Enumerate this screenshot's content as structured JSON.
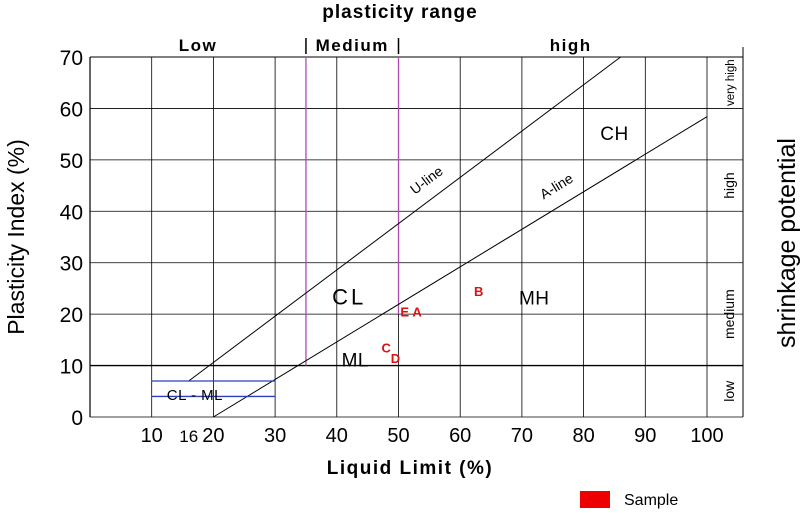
{
  "chart_data": {
    "type": "scatter",
    "title": "plasticity range",
    "xlabel": "Liquid Limit (%)",
    "ylabel": "Plasticity Index (%)",
    "right_label": "shrinkage potential",
    "xlim": [
      0,
      100
    ],
    "ylim": [
      0,
      70
    ],
    "x_ticks": [
      10,
      16,
      20,
      30,
      40,
      50,
      60,
      70,
      80,
      90,
      100
    ],
    "y_ticks": [
      0,
      10,
      20,
      30,
      40,
      50,
      60,
      70
    ],
    "grid": true,
    "plasticity_bands": [
      {
        "label": "Low",
        "x_from": 0,
        "x_to": 35
      },
      {
        "label": "Medium",
        "x_from": 35,
        "x_to": 50
      },
      {
        "label": "high",
        "x_from": 50,
        "x_to": 100
      }
    ],
    "plasticity_boundaries": [
      35,
      50
    ],
    "shrinkage_bands": [
      {
        "label": "low",
        "y_from": 0,
        "y_to": 10
      },
      {
        "label": "medium",
        "y_from": 10,
        "y_to": 30
      },
      {
        "label": "high",
        "y_from": 30,
        "y_to": 60
      },
      {
        "label": "very high",
        "y_from": 60,
        "y_to": 70
      }
    ],
    "lines": [
      {
        "name": "U-line",
        "points": [
          [
            16,
            7
          ],
          [
            86,
            70
          ]
        ]
      },
      {
        "name": "A-line",
        "points": [
          [
            20,
            0
          ],
          [
            100,
            58.4
          ]
        ]
      }
    ],
    "zones": [
      {
        "label": "CL",
        "x": 42,
        "y": 23
      },
      {
        "label": "MH",
        "x": 72,
        "y": 23
      },
      {
        "label": "CH",
        "x": 85,
        "y": 55
      },
      {
        "label": "ML",
        "x": 43,
        "y": 11
      },
      {
        "label": "CL - ML",
        "x": 17,
        "y": 4.5
      }
    ],
    "cl_ml_band": {
      "x_from": 10,
      "x_to": 30,
      "y_low": 4,
      "y_high": 7
    },
    "samples": [
      {
        "label": "E",
        "x": 51,
        "y": 20.5
      },
      {
        "label": "A",
        "x": 53,
        "y": 20.5
      },
      {
        "label": "B",
        "x": 63,
        "y": 24.5
      },
      {
        "label": "C",
        "x": 48,
        "y": 13.5
      },
      {
        "label": "D",
        "x": 49.5,
        "y": 11.5
      }
    ],
    "legend": {
      "label": "Sample",
      "color": "#ee0000"
    }
  },
  "colors": {
    "axis": "#000000",
    "grid": "#000000",
    "boundary": "#b04ab0",
    "cl_ml_band": "#2a3fbf",
    "sample": "#dd1111"
  }
}
